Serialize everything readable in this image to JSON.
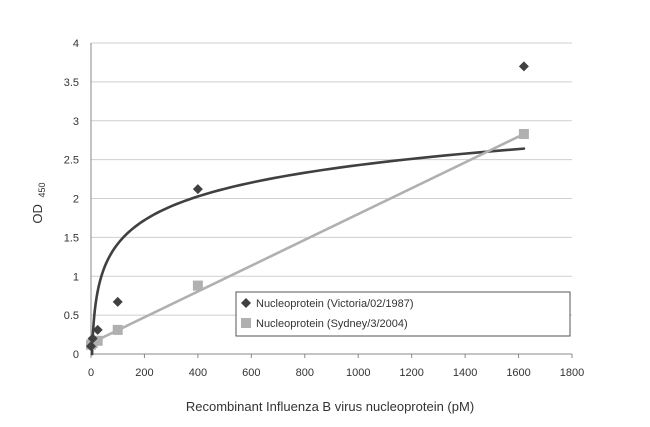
{
  "chart_data": {
    "type": "scatter",
    "xlabel": "Recombinant Influenza B virus nucleoprotein  (pM)",
    "ylabel": "OD",
    "ylabel_sub": "450",
    "xlim": [
      0,
      1800
    ],
    "ylim": [
      0,
      4
    ],
    "xticks": [
      0,
      200,
      400,
      600,
      800,
      1000,
      1200,
      1400,
      1600,
      1800
    ],
    "yticks": [
      0,
      0.5,
      1,
      1.5,
      2,
      2.5,
      3,
      3.5,
      4
    ],
    "xtick_labels": [
      "0",
      "200",
      "400",
      "600",
      "800",
      "1000",
      "1200",
      "1400",
      "1600",
      "1800"
    ],
    "ytick_labels": [
      "0",
      "0.5",
      "1",
      "1.5",
      "2",
      "2.5",
      "3",
      "3.5",
      "4"
    ],
    "grid": "horizontal",
    "legend_position": "bottom-right inside plot",
    "series": [
      {
        "name": "Nucleoprotein (Victoria/02/1987)",
        "marker": "diamond",
        "color": "#404040",
        "x": [
          0,
          6.25,
          25,
          100,
          400,
          1620
        ],
        "y": [
          0.1,
          0.2,
          0.31,
          0.67,
          2.12,
          3.7
        ],
        "trendline": {
          "type": "logarithmic",
          "x_from": 3,
          "x_to": 1620,
          "a": 0.44,
          "b": -0.61,
          "color": "#404040"
        }
      },
      {
        "name": "Nucleoprotein (Sydney/3/2004)",
        "marker": "square",
        "color": "#b0b0b0",
        "x": [
          0,
          6.25,
          25,
          100,
          400,
          1620
        ],
        "y": [
          0.12,
          0.14,
          0.17,
          0.31,
          0.88,
          2.83
        ],
        "trendline": {
          "type": "linear",
          "x_from": 0,
          "x_to": 1620,
          "slope": 0.00166,
          "intercept": 0.14,
          "color": "#b0b0b0"
        }
      }
    ]
  },
  "colors": {
    "grid": "#cfcfcf",
    "axis": "#888888",
    "legend_border": "#555555"
  }
}
